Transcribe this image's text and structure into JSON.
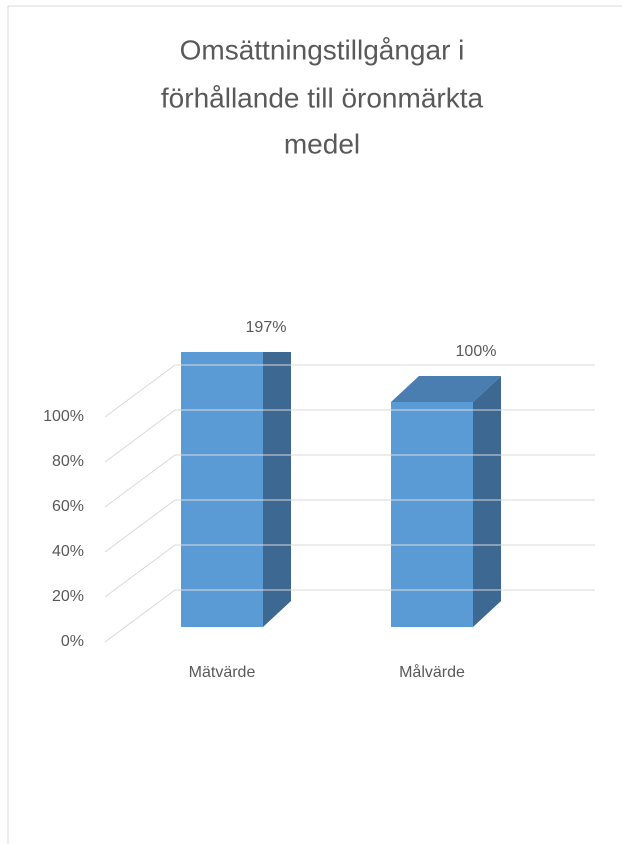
{
  "chart_data": {
    "type": "bar3d",
    "title": [
      "Omsättningstillgångar i",
      "förhållande till öronmärkta",
      "medel"
    ],
    "categories": [
      "Mätvärde",
      "Målvärde"
    ],
    "values": [
      197,
      100
    ],
    "value_labels": [
      "197%",
      "100%"
    ],
    "color": "#5b9bd5",
    "ylim": [
      0,
      100
    ],
    "yticks": [
      {
        "value": 0,
        "label": "0%"
      },
      {
        "value": 20,
        "label": "20%"
      },
      {
        "value": 40,
        "label": "40%"
      },
      {
        "value": 60,
        "label": "60%"
      },
      {
        "value": 80,
        "label": "80%"
      },
      {
        "value": 100,
        "label": "100%"
      }
    ],
    "grid": true
  }
}
